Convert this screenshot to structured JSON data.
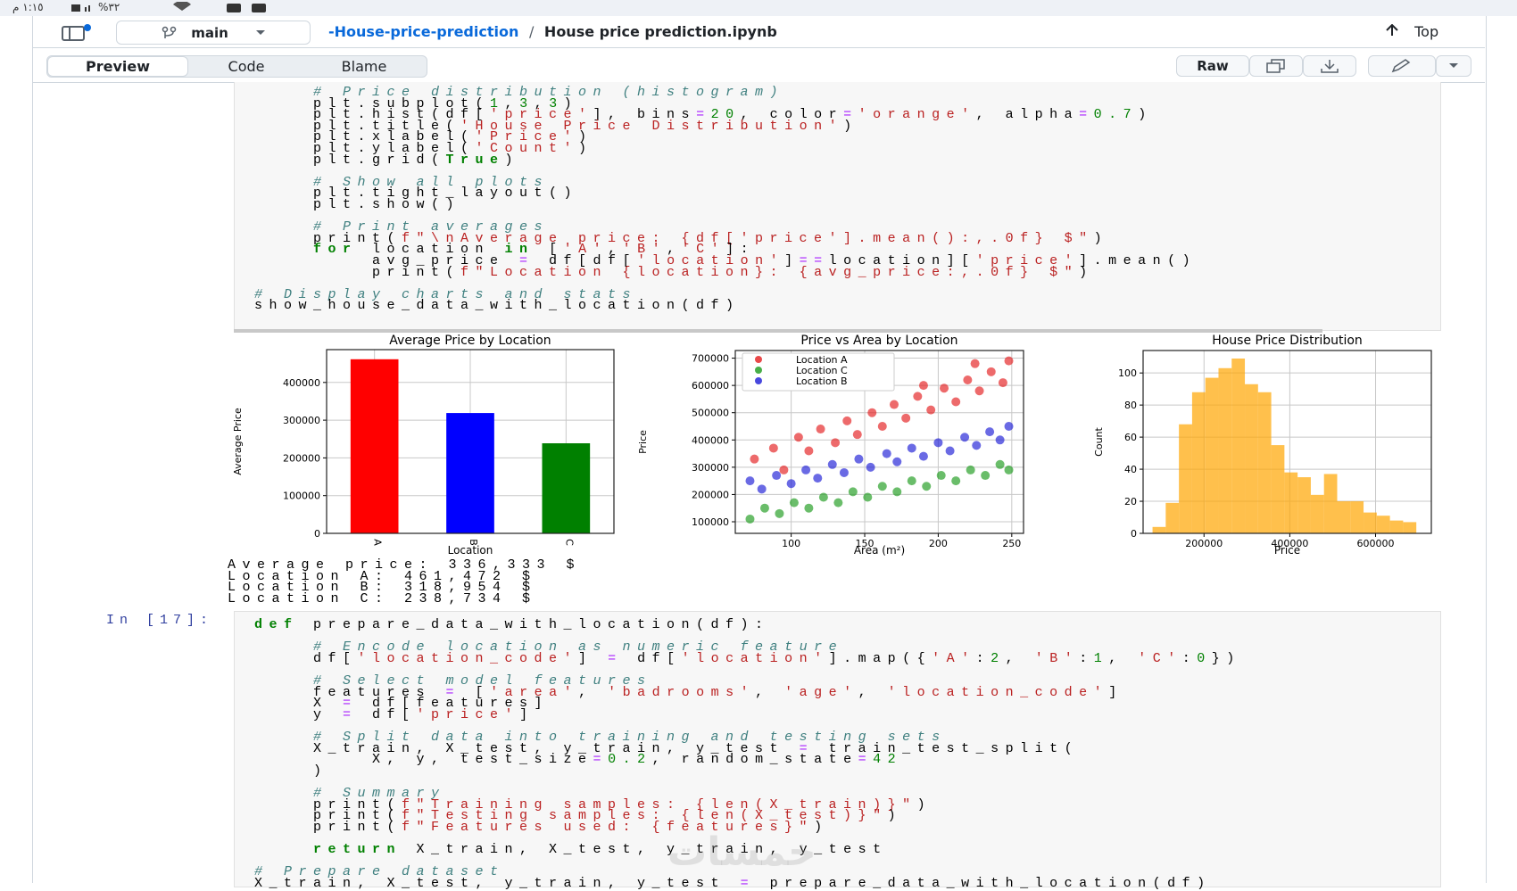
{
  "status_bar": {
    "time": "١:١٥ م",
    "battery": "%٣٢"
  },
  "header": {
    "branch": "main",
    "repo": "-House-price-prediction",
    "separator": "/",
    "file": "House price prediction.ipynb",
    "top": "Top"
  },
  "tabs": [
    "Preview",
    "Code",
    "Blame"
  ],
  "actions": {
    "raw": "Raw"
  },
  "cells": [
    {
      "groups": [
        [
          "    # Price distribution (histogram)",
          "    plt.subplot(1,3,3)",
          "    plt.hist(df['price'], bins=20, color='orange', alpha=0.7)",
          "    plt.title('House Price Distribution')",
          "    plt.xlabel('Price')",
          "    plt.ylabel('Count')",
          "    plt.grid(True)"
        ],
        [
          "    # Show all plots",
          "    plt.tight_layout()",
          "    plt.show()"
        ],
        [
          "    # Print averages",
          "    print(f\"\\nAverage price: {df['price'].mean():,.0f} $\")",
          "    for location in ['A','B','C']:",
          "        avg_price = df[df['location']==location]['price'].mean()",
          "        print(f\"Location {location}: {avg_price:,.0f} $\")"
        ],
        [
          "# Display charts and stats",
          "show_house_data_with_location(df)"
        ]
      ]
    },
    {
      "prompt": "In [17]:",
      "groups": [
        [
          "def prepare_data_with_location(df):"
        ],
        [
          "    # Encode location as numeric feature",
          "    df['location_code'] = df['location'].map({'A':2, 'B':1, 'C':0})"
        ],
        [
          "    # Select model features",
          "    features = ['area', 'badrooms', 'age', 'location_code']",
          "    X = df[features]",
          "    y = df['price']"
        ],
        [
          "    # Split data into training and testing sets",
          "    X_train, X_test, y_train, y_test = train_test_split(",
          "        X, y, test_size=0.2, random_state=42",
          "    )"
        ],
        [
          "    # Summary",
          "    print(f\"Training samples: {len(X_train)}\")",
          "    print(f\"Testing samples: {len(X_test)}\")",
          "    print(f\"Features used: {features}\")"
        ],
        [
          "    return X_train, X_test, y_train, y_test"
        ],
        [
          "# Prepare dataset",
          "X_train, X_test, y_train, y_test = prepare_data_with_location(df)"
        ]
      ]
    }
  ],
  "output": [
    "Average price: 336,333 $",
    "Location A: 461,472 $",
    "Location B: 318,954 $",
    "Location C: 238,734 $"
  ],
  "charts": [
    {
      "type": "bar",
      "title": "Average Price by Location",
      "x_label": "Location",
      "y_label": "Average Price",
      "categories": [
        "A",
        "B",
        "C"
      ],
      "values": [
        461472,
        318954,
        238734
      ],
      "colors": [
        "#ff0000",
        "#0000ff",
        "#008000"
      ],
      "ylim": [
        0,
        487000
      ],
      "yticks": [
        0,
        100000,
        200000,
        300000,
        400000
      ],
      "grid": true
    },
    {
      "type": "scatter",
      "title": "Price vs Area by Location",
      "x_label": "Area (m²)",
      "y_label": "Price",
      "xlim": [
        62,
        258
      ],
      "xticks": [
        100,
        150,
        200,
        250
      ],
      "ylim": [
        57500,
        728000
      ],
      "yticks": [
        100000,
        200000,
        300000,
        400000,
        500000,
        600000,
        700000
      ],
      "grid": true,
      "legend": "upper-left",
      "series": [
        {
          "name": "Location A",
          "color": "#e41a1c",
          "x": [
            75,
            88,
            95,
            105,
            112,
            120,
            130,
            138,
            145,
            155,
            162,
            170,
            178,
            186,
            195,
            204,
            212,
            220,
            228,
            236,
            244,
            248,
            225,
            190
          ],
          "values": [
            330000,
            370000,
            290000,
            410000,
            360000,
            440000,
            390000,
            470000,
            420000,
            500000,
            450000,
            530000,
            480000,
            560000,
            510000,
            590000,
            540000,
            620000,
            580000,
            650000,
            610000,
            690000,
            680000,
            600000
          ]
        },
        {
          "name": "Location C",
          "color": "#1a9a1a",
          "x": [
            72,
            82,
            92,
            102,
            112,
            122,
            132,
            142,
            152,
            162,
            172,
            182,
            192,
            202,
            212,
            222,
            232,
            242,
            248
          ],
          "values": [
            110000,
            150000,
            130000,
            170000,
            150000,
            190000,
            170000,
            210000,
            190000,
            230000,
            210000,
            250000,
            230000,
            270000,
            250000,
            290000,
            270000,
            310000,
            290000
          ]
        },
        {
          "name": "Location B",
          "color": "#1a1ad6",
          "x": [
            72,
            80,
            90,
            100,
            110,
            118,
            128,
            136,
            146,
            154,
            165,
            172,
            182,
            190,
            200,
            208,
            218,
            226,
            235,
            242,
            248
          ],
          "values": [
            250000,
            220000,
            270000,
            240000,
            290000,
            260000,
            310000,
            280000,
            330000,
            300000,
            350000,
            320000,
            370000,
            340000,
            390000,
            360000,
            410000,
            380000,
            430000,
            400000,
            450000
          ]
        }
      ]
    },
    {
      "type": "histogram",
      "title": "House Price Distribution",
      "x_label": "Price",
      "y_label": "Count",
      "color": "#ffa500",
      "bins": [
        80000,
        110750,
        141500,
        172250,
        203000,
        233750,
        264500,
        295250,
        326000,
        356750,
        387500,
        418250,
        449000,
        479750,
        510500,
        541250,
        572000,
        602750,
        633500,
        664250,
        695000
      ],
      "values": [
        4,
        19,
        68,
        88,
        97,
        103,
        109,
        93,
        88,
        55,
        38,
        35,
        24,
        37,
        20,
        20,
        13,
        11,
        8,
        7
      ],
      "xlim": [
        58000,
        730000
      ],
      "xticks": [
        200000,
        400000,
        600000
      ],
      "ylim": [
        0,
        114
      ],
      "yticks": [
        0,
        20,
        40,
        60,
        80,
        100
      ],
      "grid": true
    }
  ],
  "watermark": "خمسات"
}
